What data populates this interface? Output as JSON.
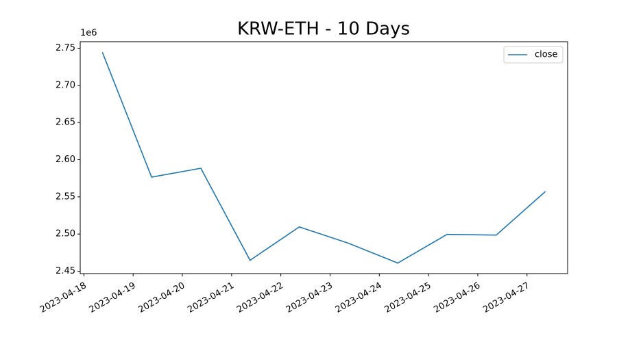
{
  "chart_data": {
    "type": "line",
    "title": "KRW-ETH - 10 Days",
    "y_offset_label": "1e6",
    "x": [
      "2023-04-18T09:00",
      "2023-04-19T09:00",
      "2023-04-20T09:00",
      "2023-04-21T09:00",
      "2023-04-22T09:00",
      "2023-04-23T09:00",
      "2023-04-24T09:00",
      "2023-04-25T09:00",
      "2023-04-26T09:00",
      "2023-04-27T09:00"
    ],
    "series": [
      {
        "name": "close",
        "color": "#1f77b4",
        "values": [
          2.7445,
          2.5766,
          2.5885,
          2.4647,
          2.5096,
          2.4876,
          2.461,
          2.4995,
          2.4986,
          2.5573
        ]
      }
    ],
    "xlim": [
      "2023-04-17T22:12",
      "2023-04-27T19:48"
    ],
    "xticks": [
      "2023-04-18",
      "2023-04-19",
      "2023-04-20",
      "2023-04-21",
      "2023-04-22",
      "2023-04-23",
      "2023-04-24",
      "2023-04-25",
      "2023-04-26",
      "2023-04-27"
    ],
    "ylim": [
      2.4468,
      2.7587
    ],
    "yticks": [
      2.45,
      {
        "value": 2.5,
        "label": "2.50"
      },
      2.55,
      {
        "value": 2.6,
        "label": "2.60"
      },
      2.65,
      {
        "value": 2.7,
        "label": "2.70"
      },
      2.75
    ],
    "legend": "upper right",
    "grid": false
  }
}
